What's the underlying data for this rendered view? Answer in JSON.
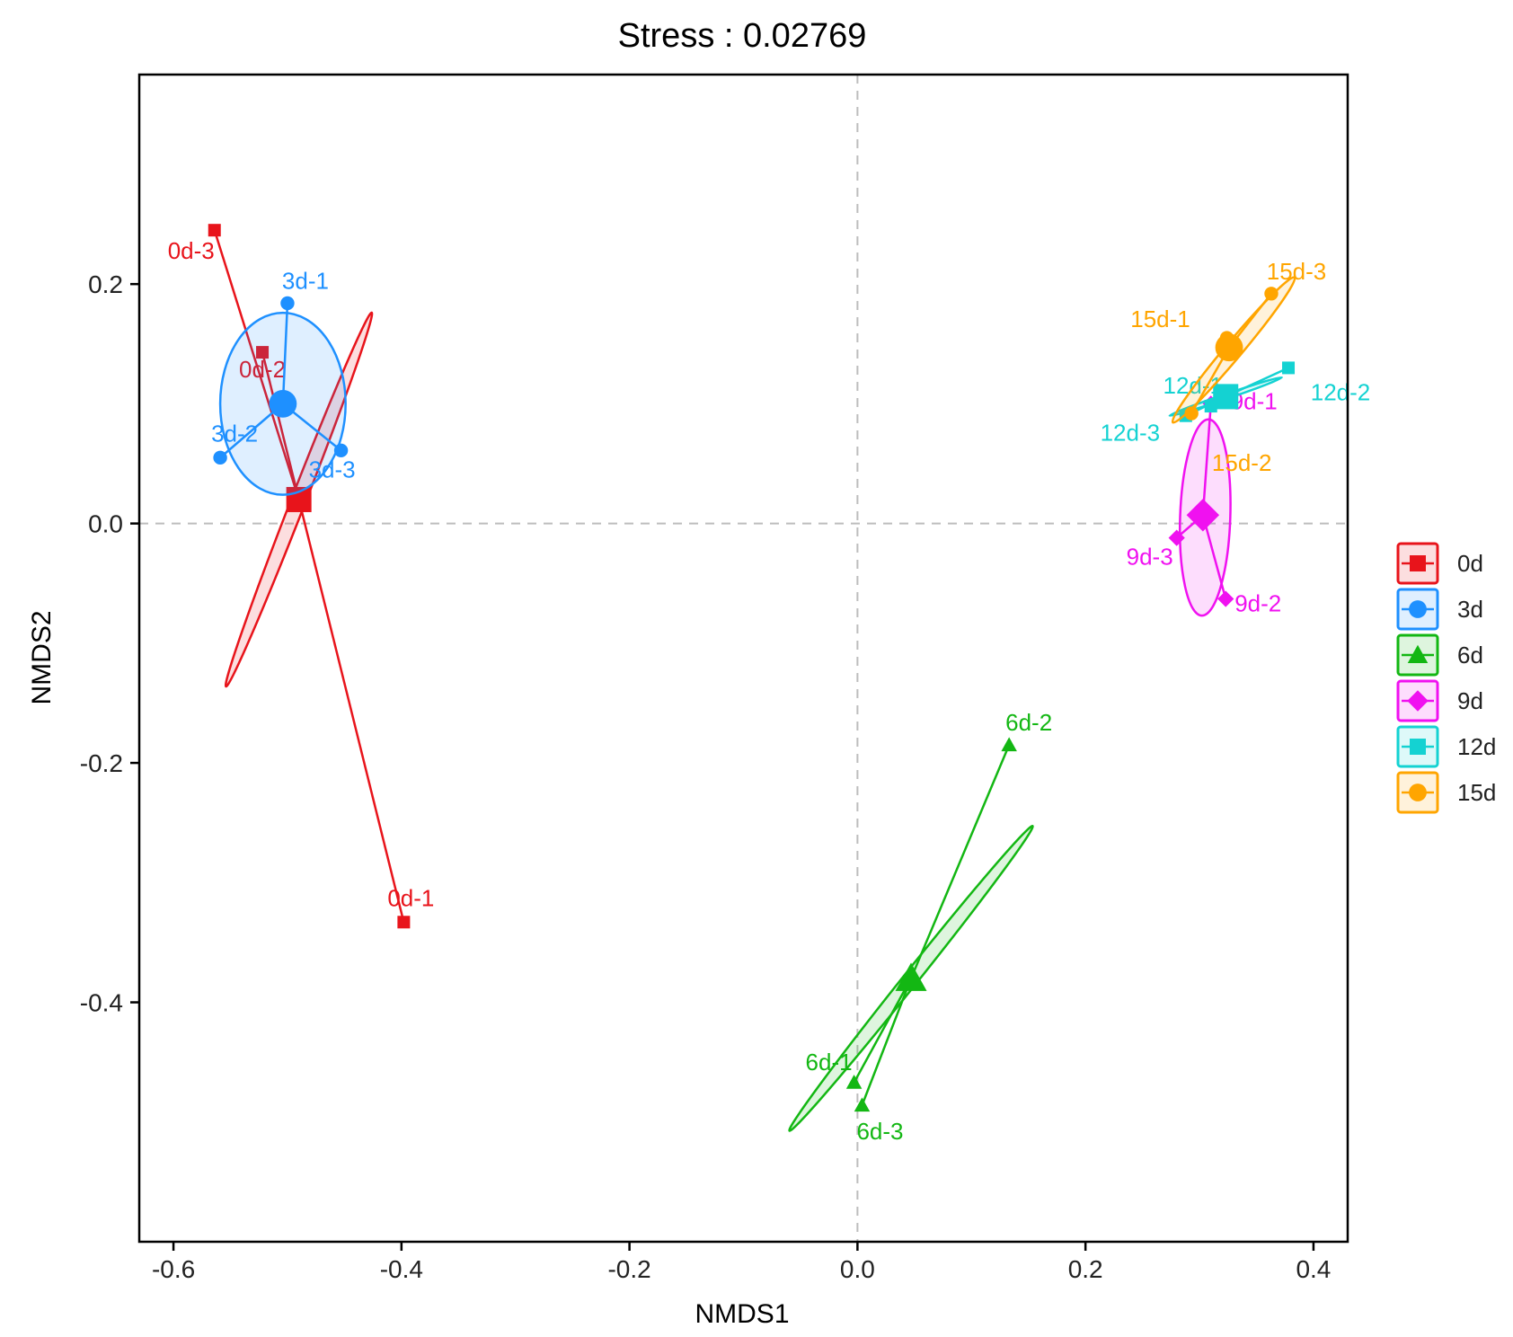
{
  "chart_data": {
    "type": "scatter",
    "title": "Stress : 0.02769",
    "xlabel": "NMDS1",
    "ylabel": "NMDS2",
    "xlim": [
      -0.63,
      0.43
    ],
    "ylim": [
      -0.6,
      0.375
    ],
    "xticks": [
      -0.6,
      -0.4,
      -0.2,
      0.0,
      0.2,
      0.4
    ],
    "xtick_labels": [
      "-0.6",
      "-0.4",
      "-0.2",
      "0.0",
      "0.2",
      "0.4"
    ],
    "yticks": [
      -0.4,
      -0.2,
      0.0,
      0.2
    ],
    "ytick_labels": [
      "-0.4",
      "-0.2",
      "0.0",
      "0.2"
    ],
    "reference_lines": {
      "x": 0,
      "y": 0
    },
    "legend_position": "right",
    "series": [
      {
        "name": "0d",
        "color": "#E8141B",
        "shape": "square",
        "centroid": [
          -0.49,
          0.02
        ],
        "ellipse": {
          "cx": -0.49,
          "cy": 0.02,
          "rx": 0.176,
          "ry": 0.006,
          "angle_deg": 68.7
        },
        "points": [
          {
            "label": "0d-1",
            "x": -0.398,
            "y": -0.333
          },
          {
            "label": "0d-2",
            "x": -0.522,
            "y": 0.143
          },
          {
            "label": "0d-3",
            "x": -0.564,
            "y": 0.245
          }
        ]
      },
      {
        "name": "3d",
        "color": "#1E90FF",
        "shape": "circle",
        "centroid": [
          -0.504,
          0.1
        ],
        "ellipse": {
          "cx": -0.504,
          "cy": 0.1,
          "rx": 0.055,
          "ry": 0.076,
          "angle_deg": 0
        },
        "points": [
          {
            "label": "3d-1",
            "x": -0.5,
            "y": 0.184
          },
          {
            "label": "3d-2",
            "x": -0.559,
            "y": 0.055
          },
          {
            "label": "3d-3",
            "x": -0.453,
            "y": 0.061
          }
        ]
      },
      {
        "name": "6d",
        "color": "#13B713",
        "shape": "triangle",
        "centroid": [
          0.047,
          -0.38
        ],
        "ellipse": {
          "cx": 0.047,
          "cy": -0.38,
          "rx": 0.171,
          "ry": 0.006,
          "angle_deg": 51.4
        },
        "points": [
          {
            "label": "6d-1",
            "x": -0.003,
            "y": -0.467
          },
          {
            "label": "6d-2",
            "x": 0.133,
            "y": -0.185
          },
          {
            "label": "6d-3",
            "x": 0.004,
            "y": -0.486
          }
        ]
      },
      {
        "name": "9d",
        "color": "#F011F0",
        "shape": "diamond",
        "centroid": [
          0.303,
          0.007
        ],
        "ellipse": {
          "cx": 0.305,
          "cy": 0.005,
          "rx": 0.022,
          "ry": 0.082,
          "angle_deg": -2
        },
        "points": [
          {
            "label": "9d-1",
            "x": 0.31,
            "y": 0.1
          },
          {
            "label": "9d-2",
            "x": 0.323,
            "y": -0.063
          },
          {
            "label": "9d-3",
            "x": 0.28,
            "y": -0.012
          }
        ]
      },
      {
        "name": "12d",
        "color": "#14D2D2",
        "shape": "square",
        "centroid": [
          0.323,
          0.106
        ],
        "ellipse": {
          "cx": 0.323,
          "cy": 0.106,
          "rx": 0.052,
          "ry": 0.002,
          "angle_deg": 18.8
        },
        "points": [
          {
            "label": "12d-1",
            "x": 0.31,
            "y": 0.098
          },
          {
            "label": "12d-2",
            "x": 0.378,
            "y": 0.13
          },
          {
            "label": "12d-3",
            "x": 0.288,
            "y": 0.09
          }
        ]
      },
      {
        "name": "15d",
        "color": "#FFA500",
        "shape": "circle",
        "centroid": [
          0.326,
          0.147
        ],
        "ellipse": {
          "cx": 0.33,
          "cy": 0.145,
          "rx": 0.083,
          "ry": 0.007,
          "angle_deg": 50
        },
        "points": [
          {
            "label": "15d-1",
            "x": 0.324,
            "y": 0.155
          },
          {
            "label": "15d-2",
            "x": 0.293,
            "y": 0.092
          },
          {
            "label": "15d-3",
            "x": 0.363,
            "y": 0.192
          }
        ]
      }
    ]
  }
}
